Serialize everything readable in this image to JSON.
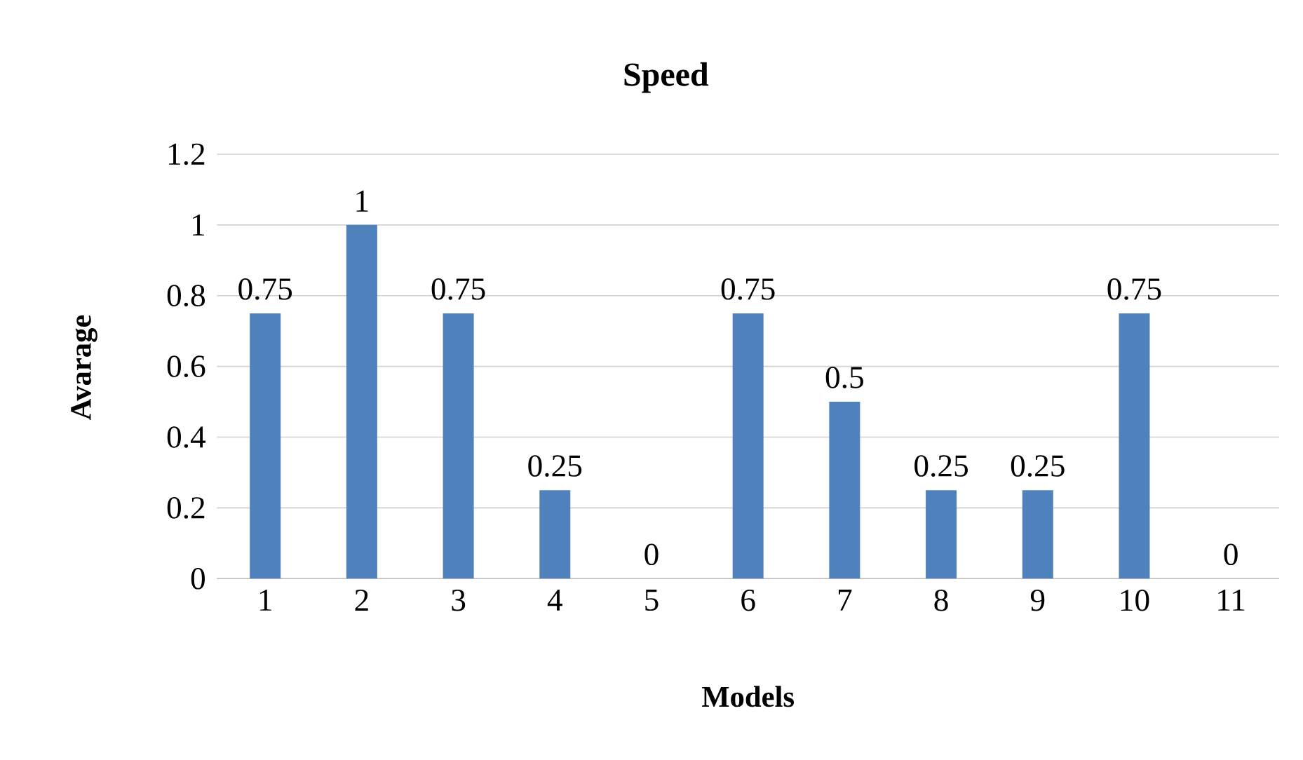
{
  "chart_data": {
    "type": "bar",
    "title": "Speed",
    "xlabel": "Models",
    "ylabel": "Avarage",
    "categories": [
      "1",
      "2",
      "3",
      "4",
      "5",
      "6",
      "7",
      "8",
      "9",
      "10",
      "11"
    ],
    "values": [
      0.75,
      1,
      0.75,
      0.25,
      0,
      0.75,
      0.5,
      0.25,
      0.25,
      0.75,
      0
    ],
    "color": "#4f81bd",
    "ylim": [
      0,
      1.2
    ],
    "yticks": [
      0,
      0.2,
      0.4,
      0.6,
      0.8,
      1,
      1.2
    ],
    "grid": "y",
    "data_labels": true
  }
}
